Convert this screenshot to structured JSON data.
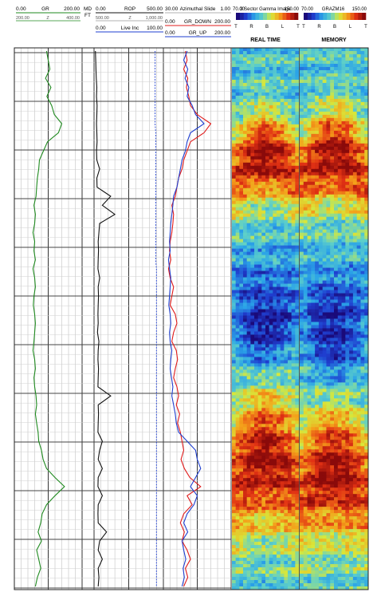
{
  "header": {
    "gr_track": {
      "min": "0.00",
      "label": "GR",
      "max": "200.00",
      "sub_left": "200.00",
      "sub_mid": "Z",
      "sub_right": "400.00"
    },
    "md_track": {
      "line1": "MD",
      "line2": "FT"
    },
    "rop_track": {
      "min": "0.00",
      "label": "ROP",
      "max": "500.00",
      "sub_left": "500.00",
      "sub_mid": "Z",
      "sub_right": "1,000.00"
    },
    "inc_track": {
      "min": "0.00",
      "label": "Live Inc",
      "max": "100.00"
    },
    "azi_track": {
      "min": "30.00",
      "label": "Azimuthal Slide",
      "max": "1.00"
    },
    "grdown_track": {
      "min": "0.00",
      "label": "GR_DOWN",
      "max": "200.00"
    },
    "grup_track": {
      "min": "0.00",
      "label": "GR_UP",
      "max": "200.00"
    },
    "image1": {
      "scale_min": "70.00",
      "label": "3 Sector Gamma Image",
      "scale_max": "150.00",
      "dirs": [
        "T",
        "R",
        "B",
        "L",
        "T"
      ],
      "title": "REAL TIME"
    },
    "image2": {
      "scale_min": "70.00",
      "label": "GRAZM16",
      "scale_max": "150.00",
      "dirs": [
        "T",
        "R",
        "B",
        "L",
        "T"
      ],
      "title": "MEMORY"
    }
  },
  "colors": {
    "gr_curve": "#1f8a1f",
    "rop_curve": "#111111",
    "inc_curve": "#1f3fd0",
    "gr_down_curve": "#e01b1b",
    "gr_up_curve": "#1f3fd0",
    "colormap": [
      "#1a0a7a",
      "#1f3fd0",
      "#2aa3e8",
      "#5fd0c8",
      "#d8e83a",
      "#f4a01a",
      "#e23214",
      "#8a0a0a"
    ]
  },
  "chart_data": {
    "type": "line",
    "title": "",
    "depth_samples": 60,
    "series": [
      {
        "name": "GR",
        "range": [
          0,
          200
        ],
        "values": [
          95,
          100,
          105,
          92,
          108,
          96,
          110,
          118,
          140,
          130,
          98,
          86,
          74,
          72,
          68,
          66,
          64,
          58,
          62,
          60,
          55,
          60,
          58,
          62,
          55,
          60,
          62,
          58,
          56,
          60,
          62,
          60,
          58,
          55,
          60,
          62,
          58,
          60,
          64,
          66,
          62,
          66,
          70,
          72,
          80,
          85,
          95,
          120,
          148,
          120,
          95,
          82,
          78,
          70,
          80,
          66,
          72,
          78,
          68,
          62
        ]
      },
      {
        "name": "ROP",
        "range": [
          0,
          500
        ],
        "values": [
          10,
          12,
          14,
          16,
          20,
          18,
          22,
          20,
          18,
          20,
          22,
          18,
          20,
          40,
          20,
          22,
          120,
          60,
          150,
          40,
          35,
          30,
          32,
          30,
          28,
          40,
          30,
          32,
          30,
          28,
          30,
          25,
          35,
          30,
          28,
          32,
          30,
          28,
          120,
          30,
          32,
          30,
          28,
          60,
          40,
          30,
          60,
          30,
          28,
          60,
          30,
          28,
          30,
          90,
          40,
          30,
          60,
          30,
          35,
          30
        ]
      },
      {
        "name": "Live Inc",
        "range": [
          0,
          100
        ],
        "values": [
          88,
          88,
          88,
          88,
          88,
          88,
          88,
          88,
          88,
          89,
          89,
          89,
          89,
          89,
          89,
          89,
          89,
          89,
          89,
          89,
          89,
          89,
          89,
          89,
          90,
          90,
          90,
          90,
          90,
          90,
          90,
          90,
          90,
          90,
          90,
          90,
          90,
          90,
          90,
          90,
          90,
          90,
          90,
          90,
          90,
          90,
          90,
          90,
          90,
          90,
          90,
          90,
          90,
          90,
          90,
          90,
          90,
          90,
          90,
          90
        ]
      },
      {
        "name": "GR_DOWN",
        "range": [
          0,
          200
        ],
        "values": [
          65,
          70,
          60,
          72,
          68,
          75,
          80,
          100,
          140,
          120,
          80,
          70,
          60,
          55,
          45,
          40,
          35,
          25,
          30,
          28,
          25,
          20,
          18,
          22,
          15,
          20,
          30,
          25,
          20,
          35,
          40,
          30,
          25,
          38,
          42,
          35,
          30,
          40,
          45,
          38,
          48,
          42,
          50,
          55,
          60,
          52,
          62,
          78,
          110,
          70,
          85,
          60,
          50,
          62,
          55,
          70,
          80,
          65,
          72,
          60
        ]
      },
      {
        "name": "GR_UP",
        "range": [
          0,
          200
        ],
        "values": [
          70,
          60,
          72,
          64,
          75,
          70,
          85,
          95,
          120,
          80,
          70,
          65,
          55,
          50,
          45,
          40,
          30,
          28,
          25,
          22,
          20,
          18,
          20,
          15,
          18,
          22,
          20,
          18,
          16,
          20,
          22,
          18,
          20,
          25,
          22,
          20,
          24,
          28,
          25,
          30,
          35,
          38,
          45,
          70,
          95,
          100,
          110,
          95,
          80,
          100,
          90,
          70,
          60,
          72,
          55,
          60,
          66,
          58,
          62,
          55
        ]
      }
    ],
    "images": [
      {
        "name": "3 Sector Gamma Image",
        "scale": [
          70,
          150
        ],
        "bands": [
          {
            "center": 0.215,
            "width": 0.055,
            "value": 1.0
          },
          {
            "center": 0.78,
            "width": 0.09,
            "value": 1.0
          },
          {
            "center": 0.43,
            "width": 0.05,
            "value": -0.35
          },
          {
            "center": 0.515,
            "width": 0.045,
            "value": -0.6
          }
        ]
      },
      {
        "name": "GRAZM16",
        "scale": [
          70,
          150
        ],
        "bands": [
          {
            "center": 0.215,
            "width": 0.06,
            "value": 1.0
          },
          {
            "center": 0.8,
            "width": 0.085,
            "value": 1.0
          },
          {
            "center": 0.46,
            "width": 0.05,
            "value": -0.5
          },
          {
            "center": 0.55,
            "width": 0.045,
            "value": -0.45
          }
        ]
      }
    ]
  }
}
